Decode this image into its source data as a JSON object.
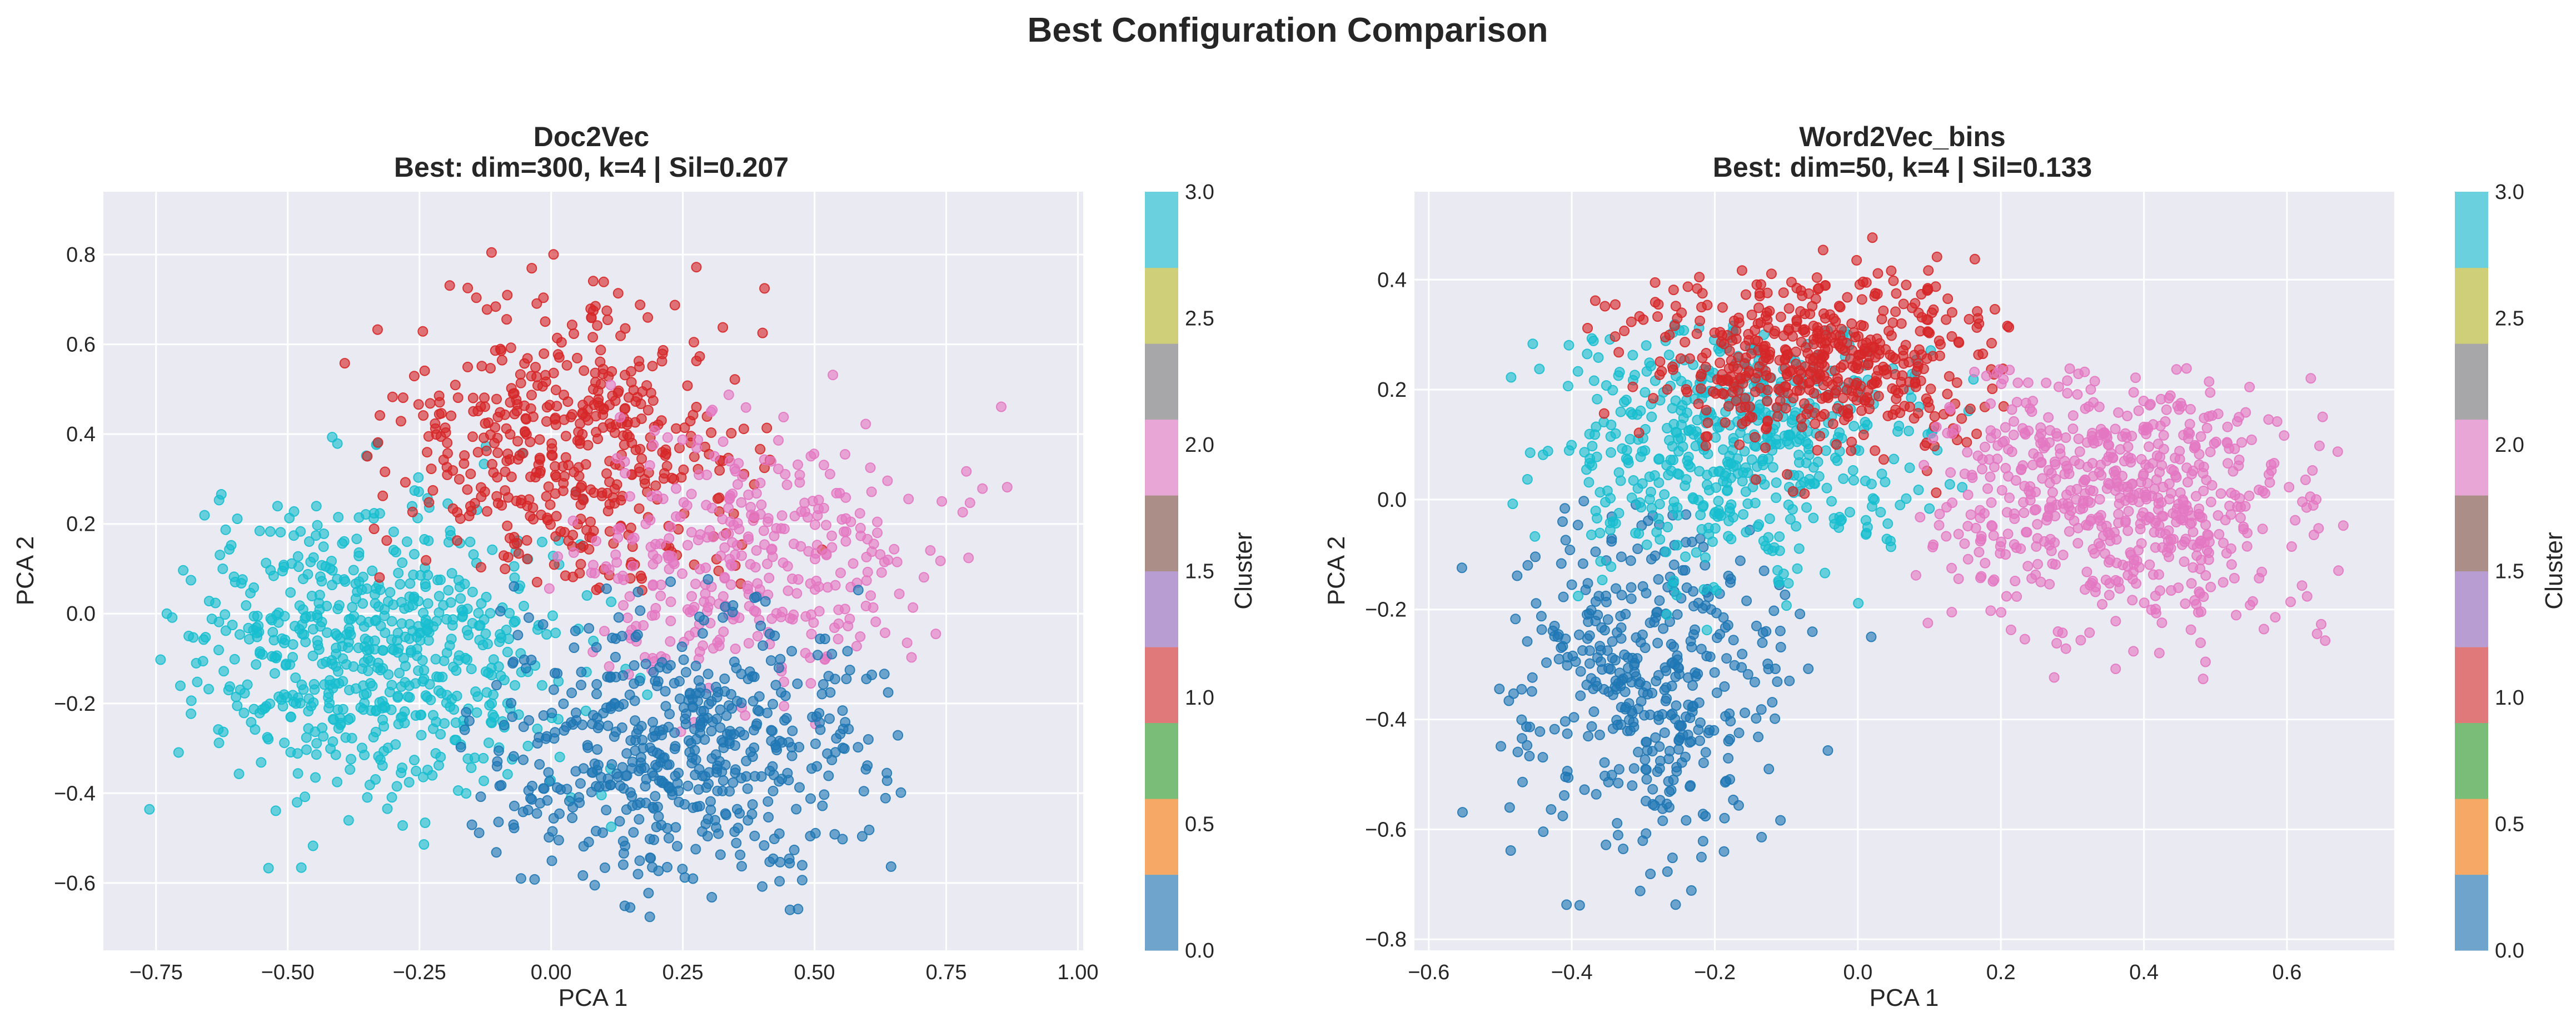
{
  "figure": {
    "title": "Best Configuration Comparison"
  },
  "colorbar": {
    "label": "Cluster",
    "ticks": [
      "0.0",
      "0.5",
      "1.0",
      "1.5",
      "2.0",
      "2.5",
      "3.0"
    ],
    "colors": [
      "#6fa5cc",
      "#f6a867",
      "#79bd79",
      "#e07a7a",
      "#b89dd2",
      "#ab8e87",
      "#e7a6d6",
      "#a7a7aa",
      "#cfcf79",
      "#6bd0de"
    ]
  },
  "colors": {
    "cluster0": "#1f77b4",
    "cluster1": "#d62728",
    "cluster2": "#e377c2",
    "cluster3": "#17becf"
  },
  "chart_data": [
    {
      "type": "scatter",
      "title": "Doc2Vec",
      "subtitle": "Best: dim=300, k=4 | Sil=0.207",
      "xlabel": "PCA 1",
      "ylabel": "PCA 2",
      "xlim": [
        -0.85,
        1.01
      ],
      "ylim": [
        -0.75,
        0.94
      ],
      "xticks": [
        -0.75,
        -0.5,
        -0.25,
        0.0,
        0.25,
        0.5,
        0.75,
        1.0
      ],
      "xtick_labels": [
        "−0.75",
        "−0.50",
        "−0.25",
        "0.00",
        "0.25",
        "0.50",
        "0.75",
        "1.00"
      ],
      "yticks": [
        -0.6,
        -0.4,
        -0.2,
        0.0,
        0.2,
        0.4,
        0.6,
        0.8
      ],
      "ytick_labels": [
        "−0.6",
        "−0.4",
        "−0.2",
        "0.0",
        "0.2",
        "0.4",
        "0.6",
        "0.8"
      ],
      "grid": true,
      "clusters": [
        {
          "cluster": 3,
          "cx": -0.33,
          "cy": -0.08,
          "sx": 0.18,
          "sy": 0.17,
          "count": 650,
          "extent": [
            [
              -0.78,
              0.2
            ],
            [
              -0.6,
              0.4
            ]
          ]
        },
        {
          "cluster": 1,
          "cx": 0.05,
          "cy": 0.38,
          "sx": 0.16,
          "sy": 0.16,
          "count": 480,
          "extent": [
            [
              -0.45,
              0.55
            ],
            [
              0.05,
              0.86
            ]
          ]
        },
        {
          "cluster": 2,
          "cx": 0.38,
          "cy": 0.12,
          "sx": 0.16,
          "sy": 0.15,
          "count": 360,
          "extent": [
            [
              -0.05,
              0.93
            ],
            [
              -0.3,
              0.58
            ]
          ]
        },
        {
          "cluster": 0,
          "cx": 0.25,
          "cy": -0.3,
          "sx": 0.18,
          "sy": 0.16,
          "count": 550,
          "extent": [
            [
              -0.2,
              0.75
            ],
            [
              -0.68,
              0.1
            ]
          ]
        }
      ]
    },
    {
      "type": "scatter",
      "title": "Word2Vec_bins",
      "subtitle": "Best: dim=50, k=4 | Sil=0.133",
      "xlabel": "PCA 1",
      "ylabel": "PCA 2",
      "xlim": [
        -0.62,
        0.75
      ],
      "ylim": [
        -0.82,
        0.56
      ],
      "xticks": [
        -0.6,
        -0.4,
        -0.2,
        0.0,
        0.2,
        0.4,
        0.6
      ],
      "xtick_labels": [
        "−0.6",
        "−0.4",
        "−0.2",
        "0.0",
        "0.2",
        "0.4",
        "0.6"
      ],
      "yticks": [
        -0.8,
        -0.6,
        -0.4,
        -0.2,
        0.0,
        0.2,
        0.4
      ],
      "ytick_labels": [
        "−0.8",
        "−0.6",
        "−0.4",
        "−0.2",
        "0.0",
        "0.2",
        "0.4"
      ],
      "grid": true,
      "clusters": [
        {
          "cluster": 0,
          "cx": -0.29,
          "cy": -0.32,
          "sx": 0.09,
          "sy": 0.17,
          "count": 420,
          "extent": [
            [
              -0.57,
              0.1
            ],
            [
              -0.75,
              0.0
            ]
          ]
        },
        {
          "cluster": 3,
          "cx": -0.17,
          "cy": 0.1,
          "sx": 0.12,
          "sy": 0.12,
          "count": 560,
          "extent": [
            [
              -0.51,
              0.2
            ],
            [
              -0.25,
              0.32
            ]
          ]
        },
        {
          "cluster": 1,
          "cx": -0.05,
          "cy": 0.25,
          "sx": 0.13,
          "sy": 0.08,
          "count": 520,
          "extent": [
            [
              -0.42,
              0.22
            ],
            [
              0.0,
              0.49
            ]
          ]
        },
        {
          "cluster": 2,
          "cx": 0.36,
          "cy": 0.0,
          "sx": 0.14,
          "sy": 0.12,
          "count": 640,
          "extent": [
            [
              0.08,
              0.68
            ],
            [
              -0.36,
              0.24
            ]
          ]
        }
      ]
    }
  ]
}
